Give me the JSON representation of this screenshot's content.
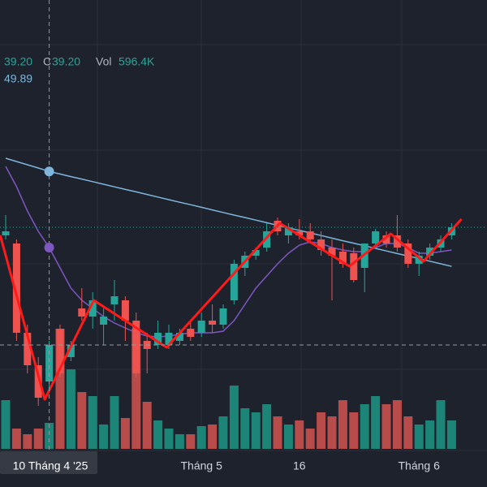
{
  "chart_data": {
    "type": "candlestick",
    "categories": [
      null,
      null,
      null,
      null,
      "10 Tháng 4 '25",
      null,
      null,
      null,
      null,
      null,
      null,
      null,
      null,
      null,
      null,
      null,
      null,
      null,
      "Tháng 5",
      null,
      null,
      null,
      null,
      null,
      null,
      null,
      null,
      "16",
      null,
      null,
      null,
      null,
      null,
      null,
      null,
      null,
      null,
      null,
      "Tháng 6",
      null,
      null,
      null
    ],
    "open": [
      45.95,
      45.45,
      39.95,
      37.95,
      36.95,
      40.2,
      38.45,
      41.45,
      40.95,
      40.45,
      41.7,
      41.95,
      40.7,
      39.45,
      39.2,
      39.2,
      39.45,
      40.2,
      39.95,
      40.7,
      40.45,
      41.95,
      43.95,
      44.7,
      45.2,
      46.85,
      45.95,
      46.2,
      46.2,
      45.7,
      45.2,
      44.95,
      44.85,
      43.95,
      45.45,
      45.95,
      45.95,
      45.45,
      44.2,
      44.7,
      45.2,
      45.95
    ],
    "high": [
      47.2,
      45.7,
      40.45,
      38.45,
      39.45,
      40.45,
      39.45,
      42.7,
      42.45,
      41.45,
      43.2,
      42.2,
      41.2,
      39.95,
      40.7,
      40.45,
      40.2,
      40.7,
      41.2,
      41.7,
      41.7,
      44.45,
      44.95,
      45.2,
      46.7,
      47.05,
      46.7,
      46.95,
      46.7,
      46.2,
      45.7,
      45.45,
      45.2,
      45.45,
      46.35,
      46.2,
      47.2,
      45.7,
      44.95,
      45.45,
      45.95,
      46.7
    ],
    "low": [
      45.7,
      39.45,
      37.45,
      35.45,
      36.45,
      37.2,
      38.2,
      40.7,
      40.2,
      39.2,
      40.7,
      39.45,
      37.2,
      37.45,
      38.95,
      38.95,
      39.2,
      39.45,
      39.7,
      39.95,
      40.2,
      41.7,
      43.45,
      44.45,
      44.95,
      45.95,
      45.45,
      45.7,
      45.45,
      44.7,
      41.95,
      43.95,
      43.05,
      42.45,
      45.2,
      45.2,
      44.95,
      43.95,
      43.45,
      44.45,
      44.95,
      45.7
    ],
    "close": [
      46.2,
      39.95,
      37.95,
      35.95,
      39.2,
      37.45,
      39.2,
      40.95,
      41.95,
      40.95,
      42.2,
      40.7,
      37.45,
      38.95,
      39.95,
      39.95,
      39.95,
      39.7,
      40.7,
      40.45,
      41.45,
      44.2,
      44.7,
      45.05,
      46.2,
      46.2,
      46.45,
      45.95,
      45.7,
      45.05,
      44.7,
      44.2,
      43.2,
      45.45,
      46.2,
      45.45,
      45.2,
      44.2,
      44.7,
      45.2,
      45.7,
      46.45
    ],
    "volume": [
      1116,
      465,
      334.8,
      465,
      596.4,
      2752.8,
      1822.8,
      1302,
      1209,
      558,
      1209,
      706.8,
      2752.8,
      1078.8,
      651,
      465,
      334.8,
      334.8,
      520.8,
      558,
      744,
      1450.8,
      930,
      837,
      1023,
      744,
      558,
      651,
      465,
      837,
      744,
      1116,
      837,
      1023,
      1209,
      1023,
      1116,
      744,
      558,
      651,
      1116,
      651
    ],
    "ylim": [
      32.7,
      60.45
    ],
    "vol_ylim": [
      0,
      10286
    ],
    "up_color": "#26a69a",
    "down_color": "#ef5350",
    "vol_up_color": "#1c8577",
    "vol_down_color": "#b84c4a",
    "series": [
      {
        "color": "#7fb6dc",
        "values": [
          50.7,
          50.5,
          50.3,
          50.1,
          49.89,
          49.73,
          49.57,
          49.42,
          49.26,
          49.1,
          48.94,
          48.78,
          48.63,
          48.47,
          48.31,
          48.15,
          47.99,
          47.84,
          47.68,
          47.52,
          47.36,
          47.2,
          47.05,
          46.89,
          46.73,
          46.57,
          46.41,
          46.26,
          46.1,
          45.94,
          45.78,
          45.62,
          45.47,
          45.31,
          45.15,
          44.99,
          44.83,
          44.68,
          44.52,
          44.36,
          44.2,
          44.04
        ]
      },
      {
        "color": "#7e57c2",
        "values": [
          50.2,
          48.95,
          47.45,
          46.2,
          45.2,
          43.95,
          42.7,
          41.95,
          41.45,
          40.95,
          40.55,
          40.25,
          39.95,
          39.75,
          39.7,
          39.75,
          39.85,
          39.95,
          39.95,
          39.95,
          40.05,
          40.7,
          41.7,
          42.7,
          43.45,
          44.2,
          44.85,
          45.35,
          45.55,
          45.45,
          45.2,
          45.05,
          44.95,
          44.95,
          45.2,
          45.45,
          45.45,
          45.2,
          44.85,
          44.85,
          44.95,
          45.05
        ]
      }
    ],
    "zigzag": {
      "color": "#ff1a1a",
      "x": [
        -0.5,
        3.6,
        8.1,
        14.8,
        25.2,
        31.6,
        35.4,
        38.4,
        41.9
      ],
      "y": [
        45.95,
        35.85,
        41.95,
        39.05,
        46.7,
        44.05,
        46.05,
        44.35,
        46.95
      ]
    },
    "crosshair": {
      "index": 4,
      "price": 39.2
    },
    "legend": {
      "h": "39.20",
      "c_label": "C",
      "c": "39.20",
      "vol_label": "Vol",
      "vol": "596.4K",
      "ma": "49.89"
    }
  }
}
